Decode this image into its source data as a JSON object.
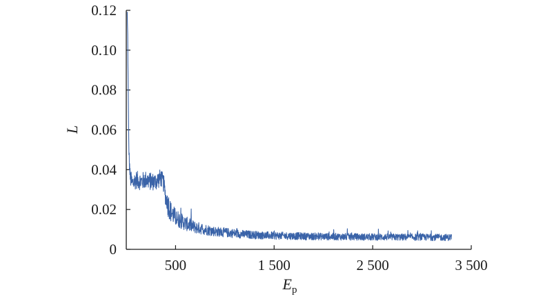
{
  "chart_data": {
    "type": "line",
    "title": "",
    "xlabel_main": "E",
    "xlabel_sub": "p",
    "ylabel": "L",
    "xlim": [
      0,
      3500
    ],
    "ylim": [
      0,
      0.12
    ],
    "x_ticks": [
      {
        "value": 500,
        "label": "500"
      },
      {
        "value": 1500,
        "label": "1 500"
      },
      {
        "value": 2500,
        "label": "2 500"
      },
      {
        "value": 3500,
        "label": "3 500"
      }
    ],
    "y_ticks": [
      {
        "value": 0,
        "label": "0"
      },
      {
        "value": 0.02,
        "label": "0.02"
      },
      {
        "value": 0.04,
        "label": "0.04"
      },
      {
        "value": 0.06,
        "label": "0.06"
      },
      {
        "value": 0.08,
        "label": "0.08"
      },
      {
        "value": 0.1,
        "label": "0.10"
      },
      {
        "value": 0.12,
        "label": "0.12"
      }
    ],
    "grid": false,
    "line_color": "#3a63a8",
    "series": [
      {
        "x": [
          10,
          15,
          20,
          25,
          30,
          40,
          60,
          80,
          100,
          150,
          200,
          250,
          300,
          350,
          380,
          400,
          430,
          450,
          500,
          600,
          700,
          800,
          900,
          1000,
          1200,
          1400,
          1600,
          1800,
          2000,
          2200,
          2400,
          2600,
          2800,
          3000,
          3200,
          3300
        ],
        "y": [
          0.118,
          0.105,
          0.077,
          0.055,
          0.045,
          0.036,
          0.033,
          0.034,
          0.035,
          0.034,
          0.035,
          0.034,
          0.034,
          0.036,
          0.033,
          0.026,
          0.022,
          0.019,
          0.016,
          0.013,
          0.011,
          0.01,
          0.009,
          0.0085,
          0.0075,
          0.007,
          0.0068,
          0.0066,
          0.0064,
          0.0063,
          0.0062,
          0.0062,
          0.0061,
          0.0061,
          0.006,
          0.006
        ]
      }
    ]
  }
}
